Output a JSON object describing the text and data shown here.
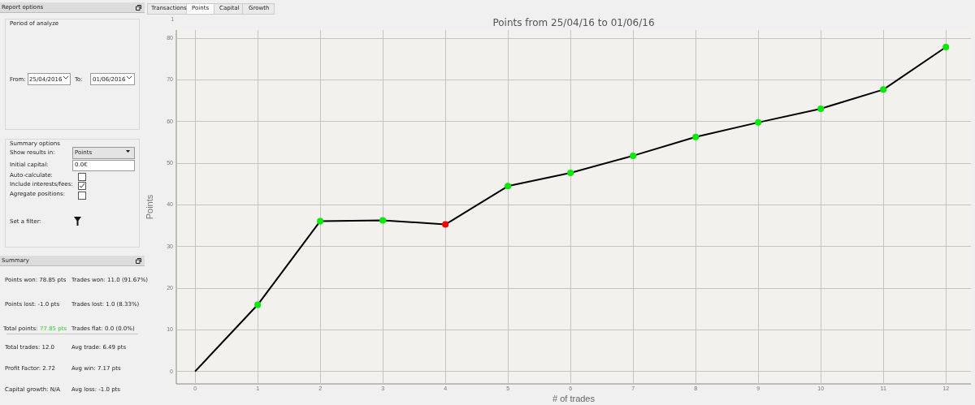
{
  "chart_data": {
    "type": "line",
    "title": "Points from 25/04/16 to 01/06/16",
    "xlabel": "# of trades",
    "ylabel": "Points",
    "x": [
      0,
      1,
      2,
      3,
      4,
      5,
      6,
      7,
      8,
      9,
      10,
      11,
      12
    ],
    "series": [
      {
        "color": "#000000",
        "values": [
          0,
          16.0,
          36.1,
          36.3,
          35.3,
          44.5,
          47.7,
          51.8,
          56.3,
          59.8,
          63.1,
          67.7,
          77.9
        ],
        "colors": [
          null,
          "#00ee00",
          "#00ee00",
          "#00ee00",
          "#ff0000",
          "#00ee00",
          "#00ee00",
          "#00ee00",
          "#00ee00",
          "#00ee00",
          "#00ee00",
          "#00ee00",
          "#00ee00"
        ]
      }
    ],
    "xlim": [
      -0.3,
      12.4
    ],
    "xticks": [
      0,
      1,
      2,
      3,
      4,
      5,
      6,
      7,
      8,
      9,
      10,
      11,
      12
    ],
    "ylim": [
      -3,
      82
    ],
    "yticks": [
      0,
      10,
      20,
      30,
      40,
      50,
      60,
      70,
      80
    ],
    "grid": true,
    "legend": false,
    "marker": "circle",
    "line_style": "solid",
    "annotations": [
      "Report options",
      "Period of analyze",
      "From:",
      "25/04/2016",
      "To:",
      "01/06/2016",
      "Summary options",
      "Show results in:",
      "Points",
      "Initial capital:",
      "0.0€",
      "Auto-calculate:",
      "Include interests/fees:",
      "Agregate positions:",
      "Set a filter:",
      "Summary",
      "Points won: 78.85 pts",
      "Trades won: 11.0 (91.67%)",
      "Points lost: -1.0 pts",
      "Trades lost: 1.0 (8.33%)",
      "Total points:",
      "77.85 pts",
      "Trades flat: 0.0 (0.0%)",
      "Total trades: 12.0",
      "Avg trade: 6.49 pts",
      "Profit Factor: 2.72",
      "Avg win: 7.17 pts",
      "Capital growth: N/A",
      "Avg loss: -1.0 pts",
      "Transactions",
      "Points",
      "Capital",
      "Growth",
      "1"
    ]
  }
}
